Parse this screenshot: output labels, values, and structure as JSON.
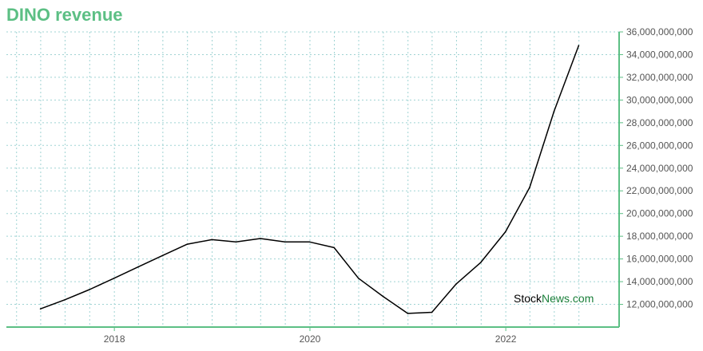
{
  "chart_data": {
    "type": "line",
    "title": "DINO revenue",
    "xlabel": "",
    "ylabel": "",
    "x_ticks": [
      "2018",
      "2020",
      "2022"
    ],
    "y_ticks": [
      "12,000,000,000",
      "14,000,000,000",
      "16,000,000,000",
      "18,000,000,000",
      "20,000,000,000",
      "22,000,000,000",
      "24,000,000,000",
      "26,000,000,000",
      "28,000,000,000",
      "30,000,000,000",
      "32,000,000,000",
      "34,000,000,000",
      "36,000,000,000"
    ],
    "ylim": [
      10000000000,
      36000000000
    ],
    "grid": true,
    "y_axis_side": "right",
    "series": [
      {
        "x": [
          "2017-03-31",
          "2017-06-30",
          "2017-09-30",
          "2017-12-31",
          "2018-03-31",
          "2018-06-30",
          "2018-09-30",
          "2018-12-31",
          "2019-03-31",
          "2019-06-30",
          "2019-09-30",
          "2019-12-31",
          "2020-03-31",
          "2020-06-30",
          "2020-09-30",
          "2020-12-31",
          "2021-03-31",
          "2021-06-30",
          "2021-09-30",
          "2021-12-31",
          "2022-03-31",
          "2022-06-30",
          "2022-09-30"
        ],
        "values": [
          11600000000,
          12400000000,
          13300000000,
          14300000000,
          15300000000,
          16300000000,
          17300000000,
          17700000000,
          17500000000,
          17800000000,
          17500000000,
          17500000000,
          17000000000,
          14300000000,
          12700000000,
          11200000000,
          11300000000,
          13800000000,
          15700000000,
          18400000000,
          22300000000,
          29000000000,
          34800000000
        ]
      }
    ],
    "colors": {
      "line": "#000000",
      "title": "#5cbf84",
      "axis": "#5cbf84",
      "grid": "#9fd3d3",
      "watermark_stock": "#000000",
      "watermark_news": "#1a7f3a"
    }
  },
  "watermark": {
    "part1": "Stock",
    "part2": "News.com"
  }
}
